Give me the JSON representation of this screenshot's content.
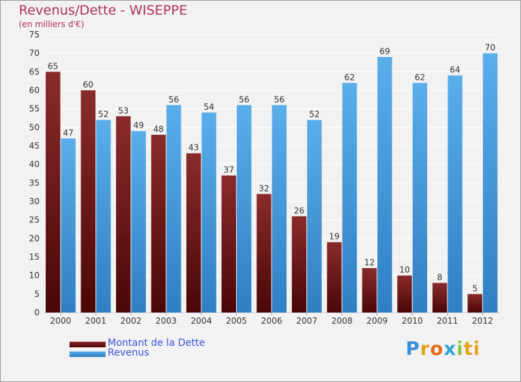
{
  "header": {
    "title": "Revenus/Dette - WISEPPE",
    "subtitle": "(en milliers d'€)"
  },
  "logo": {
    "text": "Proxiti",
    "letters": [
      "P",
      "r",
      "o",
      "x",
      "i",
      "ti"
    ]
  },
  "colors": {
    "dette_top": "#8a2b2b",
    "dette_bottom": "#4a0606",
    "revenus_top": "#5aaeea",
    "revenus_bottom": "#2f7fc4",
    "grid": "#ffffff",
    "title": "#b0305a"
  },
  "chart_data": {
    "type": "bar",
    "title": "Revenus/Dette - WISEPPE",
    "subtitle": "(en milliers d'€)",
    "categories": [
      "2000",
      "2001",
      "2002",
      "2003",
      "2004",
      "2005",
      "2006",
      "2007",
      "2008",
      "2009",
      "2010",
      "2011",
      "2012"
    ],
    "series": [
      {
        "name": "Montant de la Dette",
        "values": [
          65,
          60,
          53,
          48,
          43,
          37,
          32,
          26,
          19,
          12,
          10,
          8,
          5
        ]
      },
      {
        "name": "Revenus",
        "values": [
          47,
          52,
          49,
          56,
          54,
          56,
          56,
          52,
          62,
          69,
          62,
          64,
          70
        ]
      }
    ],
    "ylim": [
      0,
      75
    ],
    "yticks": [
      0,
      5,
      10,
      15,
      20,
      25,
      30,
      35,
      40,
      45,
      50,
      55,
      60,
      65,
      70,
      75
    ],
    "grid": true,
    "legend": "bottom-left"
  }
}
